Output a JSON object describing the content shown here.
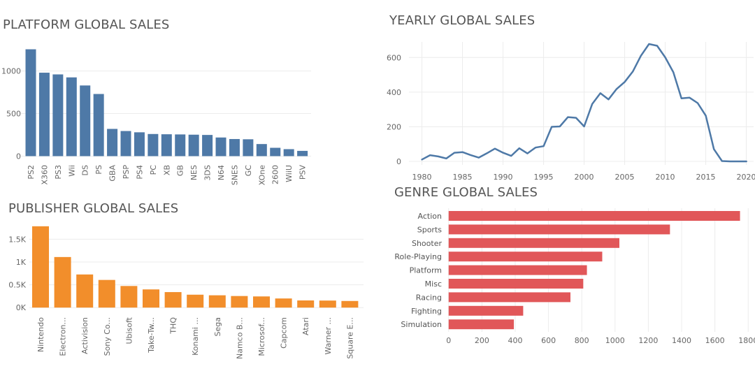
{
  "chart_data": [
    {
      "id": "platform",
      "type": "bar",
      "title": "PLATFORM GLOBAL SALES",
      "categories": [
        "PS2",
        "X360",
        "PS3",
        "Wii",
        "DS",
        "PS",
        "GBA",
        "PSP",
        "PS4",
        "PC",
        "XB",
        "GB",
        "NES",
        "3DS",
        "N64",
        "SNES",
        "GC",
        "XOne",
        "2600",
        "WiiU",
        "PSV"
      ],
      "values": [
        1255,
        980,
        960,
        925,
        830,
        730,
        320,
        295,
        280,
        260,
        257,
        255,
        252,
        249,
        219,
        201,
        198,
        142,
        98,
        82,
        62
      ],
      "ylim": [
        -70,
        1325
      ],
      "yticks": [
        {
          "v": 0,
          "label": "0"
        },
        {
          "v": 500,
          "label": "500"
        },
        {
          "v": 1000,
          "label": "1000"
        }
      ],
      "color": "#4e79a7"
    },
    {
      "id": "yearly",
      "type": "line",
      "title": "YEARLY GLOBAL SALES",
      "x": [
        1980,
        1981,
        1982,
        1983,
        1984,
        1985,
        1986,
        1987,
        1988,
        1989,
        1990,
        1991,
        1992,
        1993,
        1994,
        1995,
        1996,
        1997,
        1998,
        1999,
        2000,
        2001,
        2002,
        2003,
        2004,
        2005,
        2006,
        2007,
        2008,
        2009,
        2010,
        2011,
        2012,
        2013,
        2014,
        2015,
        2016,
        2017,
        2018,
        2019,
        2020
      ],
      "values": [
        11,
        36,
        29,
        17,
        50,
        54,
        37,
        22,
        47,
        74,
        50,
        32,
        76,
        46,
        80,
        88,
        200,
        202,
        256,
        252,
        202,
        332,
        394,
        358,
        418,
        459,
        519,
        610,
        678,
        668,
        601,
        515,
        364,
        368,
        337,
        264,
        71,
        2,
        0,
        0,
        0
      ],
      "xlim": [
        1978.4,
        2020.9
      ],
      "ylim": [
        -20,
        690
      ],
      "xticks": [
        1980,
        1985,
        1990,
        1995,
        2000,
        2005,
        2010,
        2015,
        2020
      ],
      "yticks": [
        {
          "v": 0,
          "label": "0"
        },
        {
          "v": 200,
          "label": "200"
        },
        {
          "v": 400,
          "label": "400"
        },
        {
          "v": 600,
          "label": "600"
        }
      ],
      "color": "#4e79a7"
    },
    {
      "id": "publisher",
      "type": "bar",
      "title": "PUBLISHER GLOBAL SALES",
      "categories": [
        "Nintendo",
        "Electron...",
        "Activision",
        "Sony Co...",
        "Ubisoft",
        "Take-Tw...",
        "THQ",
        "Konami ...",
        "Sega",
        "Namco B...",
        "Microsof...",
        "Capcom",
        "Atari",
        "Warner ...",
        "Square E..."
      ],
      "values": [
        1785,
        1110,
        727,
        607,
        474,
        399,
        340,
        283,
        270,
        254,
        245,
        200,
        157,
        154,
        145
      ],
      "ylim": [
        -150,
        1890
      ],
      "yticks": [
        {
          "v": 0,
          "label": "0K"
        },
        {
          "v": 500,
          "label": "0.5K"
        },
        {
          "v": 1000,
          "label": "1K"
        },
        {
          "v": 1500,
          "label": "1.5K"
        }
      ],
      "color": "#f28e2b"
    },
    {
      "id": "genre",
      "type": "bar",
      "orientation": "horizontal",
      "title": "GENRE GLOBAL SALES",
      "categories": [
        "Action",
        "Sports",
        "Shooter",
        "Role-Playing",
        "Platform",
        "Misc",
        "Racing",
        "Fighting",
        "Simulation"
      ],
      "values": [
        1751,
        1330,
        1026,
        923,
        831,
        809,
        732,
        448,
        392
      ],
      "xlim": [
        -20,
        1820
      ],
      "xticks": [
        0,
        200,
        400,
        600,
        800,
        1000,
        1200,
        1400,
        1600,
        1800
      ],
      "color": "#e15759"
    }
  ]
}
